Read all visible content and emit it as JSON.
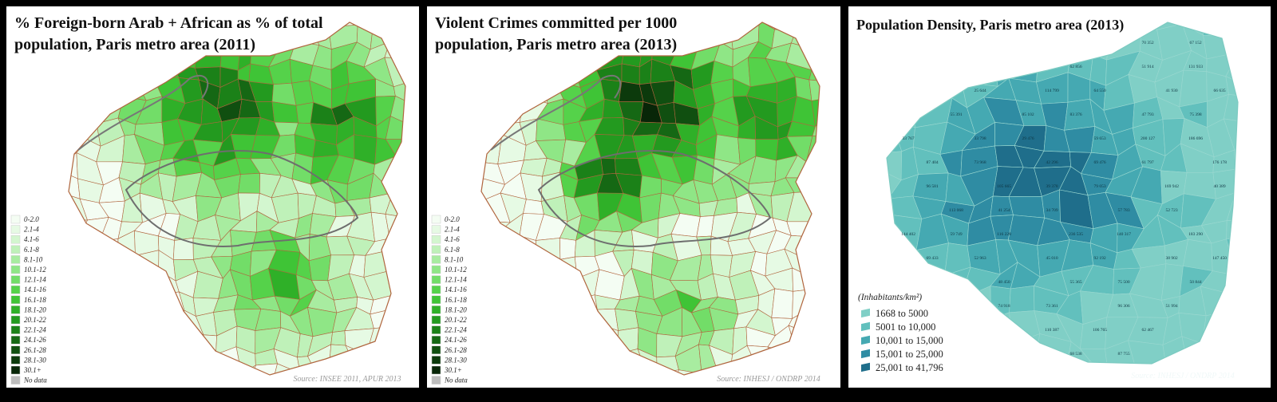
{
  "maps": [
    {
      "title": "% Foreign-born Arab + African as % of total population, Paris metro area (2011)",
      "legend": [
        {
          "label": "0-2.0",
          "color": "#f4fdf3"
        },
        {
          "label": "2.1-4",
          "color": "#e6fae4"
        },
        {
          "label": "4.1-6",
          "color": "#d3f6cf"
        },
        {
          "label": "6.1-8",
          "color": "#bff1b9"
        },
        {
          "label": "8.1-10",
          "color": "#a8eca0"
        },
        {
          "label": "10.1-12",
          "color": "#8fe686"
        },
        {
          "label": "12.1-14",
          "color": "#72dd68"
        },
        {
          "label": "14.1-16",
          "color": "#55d24a"
        },
        {
          "label": "16.1-18",
          "color": "#3fc436"
        },
        {
          "label": "18.1-20",
          "color": "#2fb028"
        },
        {
          "label": "20.1-22",
          "color": "#239a1f"
        },
        {
          "label": "22.1-24",
          "color": "#1b8118"
        },
        {
          "label": "24.1-26",
          "color": "#156814"
        },
        {
          "label": "26.1-28",
          "color": "#104f10"
        },
        {
          "label": "28.1-30",
          "color": "#0c3a0c"
        },
        {
          "label": "30.1+",
          "color": "#082608"
        },
        {
          "label": "No data",
          "color": "#bdbdbd"
        }
      ],
      "source": "Source: INSEE 2011, APUR 2013"
    },
    {
      "title": "Violent Crimes committed per 1000 population, Paris metro area (2013)",
      "legend": [
        {
          "label": "0-2.0",
          "color": "#f4fdf3"
        },
        {
          "label": "2.1-4",
          "color": "#e6fae4"
        },
        {
          "label": "4.1-6",
          "color": "#d3f6cf"
        },
        {
          "label": "6.1-8",
          "color": "#bff1b9"
        },
        {
          "label": "8.1-10",
          "color": "#a8eca0"
        },
        {
          "label": "10.1-12",
          "color": "#8fe686"
        },
        {
          "label": "12.1-14",
          "color": "#72dd68"
        },
        {
          "label": "14.1-16",
          "color": "#55d24a"
        },
        {
          "label": "16.1-18",
          "color": "#3fc436"
        },
        {
          "label": "18.1-20",
          "color": "#2fb028"
        },
        {
          "label": "20.1-22",
          "color": "#239a1f"
        },
        {
          "label": "22.1-24",
          "color": "#1b8118"
        },
        {
          "label": "24.1-26",
          "color": "#156814"
        },
        {
          "label": "26.1-28",
          "color": "#104f10"
        },
        {
          "label": "28.1-30",
          "color": "#0c3a0c"
        },
        {
          "label": "30.1+",
          "color": "#082608"
        },
        {
          "label": "No data",
          "color": "#bdbdbd"
        }
      ],
      "source": "Source: INHESJ / ONDRP 2014"
    },
    {
      "title": "Population Density, Paris metro area (2013)",
      "legend_title": "(Inhabitants/km²)",
      "legend": [
        {
          "label": "1668 to 5000",
          "color": "#80cfc6"
        },
        {
          "label": "5001 to 10,000",
          "color": "#62c0bd"
        },
        {
          "label": "10,001 to 15,000",
          "color": "#45a9b2"
        },
        {
          "label": "15,001 to 25,000",
          "color": "#2f8ca3"
        },
        {
          "label": "25,001 to 41,796",
          "color": "#1f6e8b"
        }
      ],
      "source": "Source: INHESJ / ONDRP 2014",
      "district_labels": [
        "70 352",
        "67 152",
        "62 856",
        "51 914",
        "131 933",
        "25 644",
        "114 799",
        "64 550",
        "41 930",
        "66 635",
        "55 391",
        "85 102",
        "83 376",
        "47 793",
        "75 398",
        "33 767",
        "33 798",
        "29 476",
        "59 653",
        "200 127",
        "186 696",
        "87 404",
        "73 968",
        "42 296",
        "69 476",
        "61 797",
        "176 178",
        "96 581",
        "105 665",
        "39 378",
        "79 053",
        "169 942",
        "40 389",
        "113 068",
        "41 254",
        "34 709",
        "57 783",
        "52 723",
        "144 402",
        "59 749",
        "116 228",
        "236 535",
        "140 317",
        "183 290",
        "69 433",
        "52 963",
        "45 010",
        "92 192",
        "38 902",
        "147 450",
        "48 450",
        "55 365",
        "75 500",
        "50 844",
        "74 918",
        "73 361",
        "96 306",
        "51 994",
        "110 387",
        "106 765",
        "62 467",
        "68 538",
        "87 755"
      ]
    }
  ]
}
